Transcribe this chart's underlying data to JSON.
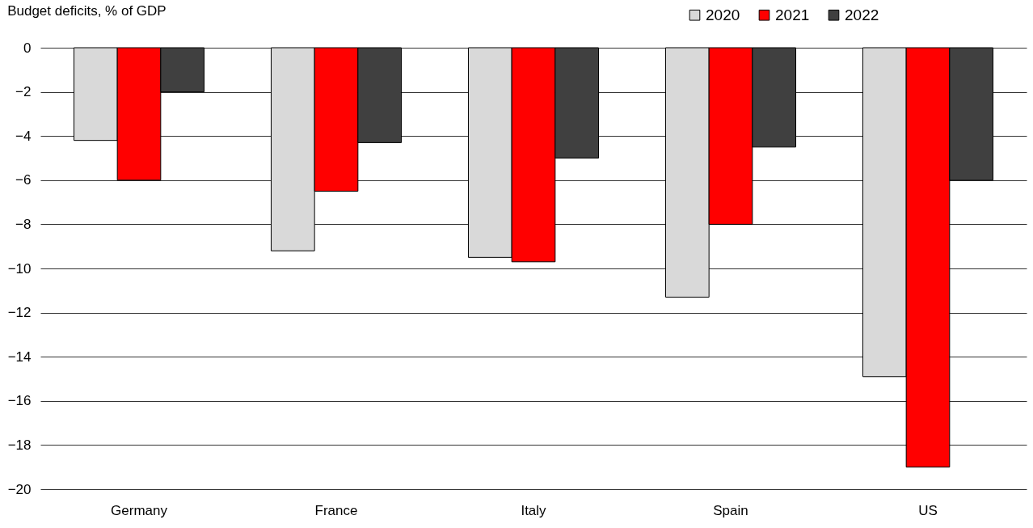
{
  "chart_data": {
    "type": "bar",
    "title": "Budget deficits, % of GDP",
    "categories": [
      "Germany",
      "France",
      "Italy",
      "Spain",
      "US"
    ],
    "series": [
      {
        "name": "2020",
        "color": "#d9d9d9",
        "values": [
          -4.2,
          -9.2,
          -9.5,
          -11.3,
          -14.9
        ]
      },
      {
        "name": "2021",
        "color": "#ff0000",
        "values": [
          -6.0,
          -6.5,
          -9.7,
          -8.0,
          -19.0
        ]
      },
      {
        "name": "2022",
        "color": "#404040",
        "values": [
          -2.0,
          -4.3,
          -5.0,
          -4.5,
          -6.0
        ]
      }
    ],
    "ylim": [
      -20,
      0
    ],
    "yticks": [
      -20,
      -18,
      -16,
      -14,
      -12,
      -10,
      -8,
      -6,
      -4,
      -2,
      0
    ],
    "grid": "y",
    "legend": "top right"
  }
}
